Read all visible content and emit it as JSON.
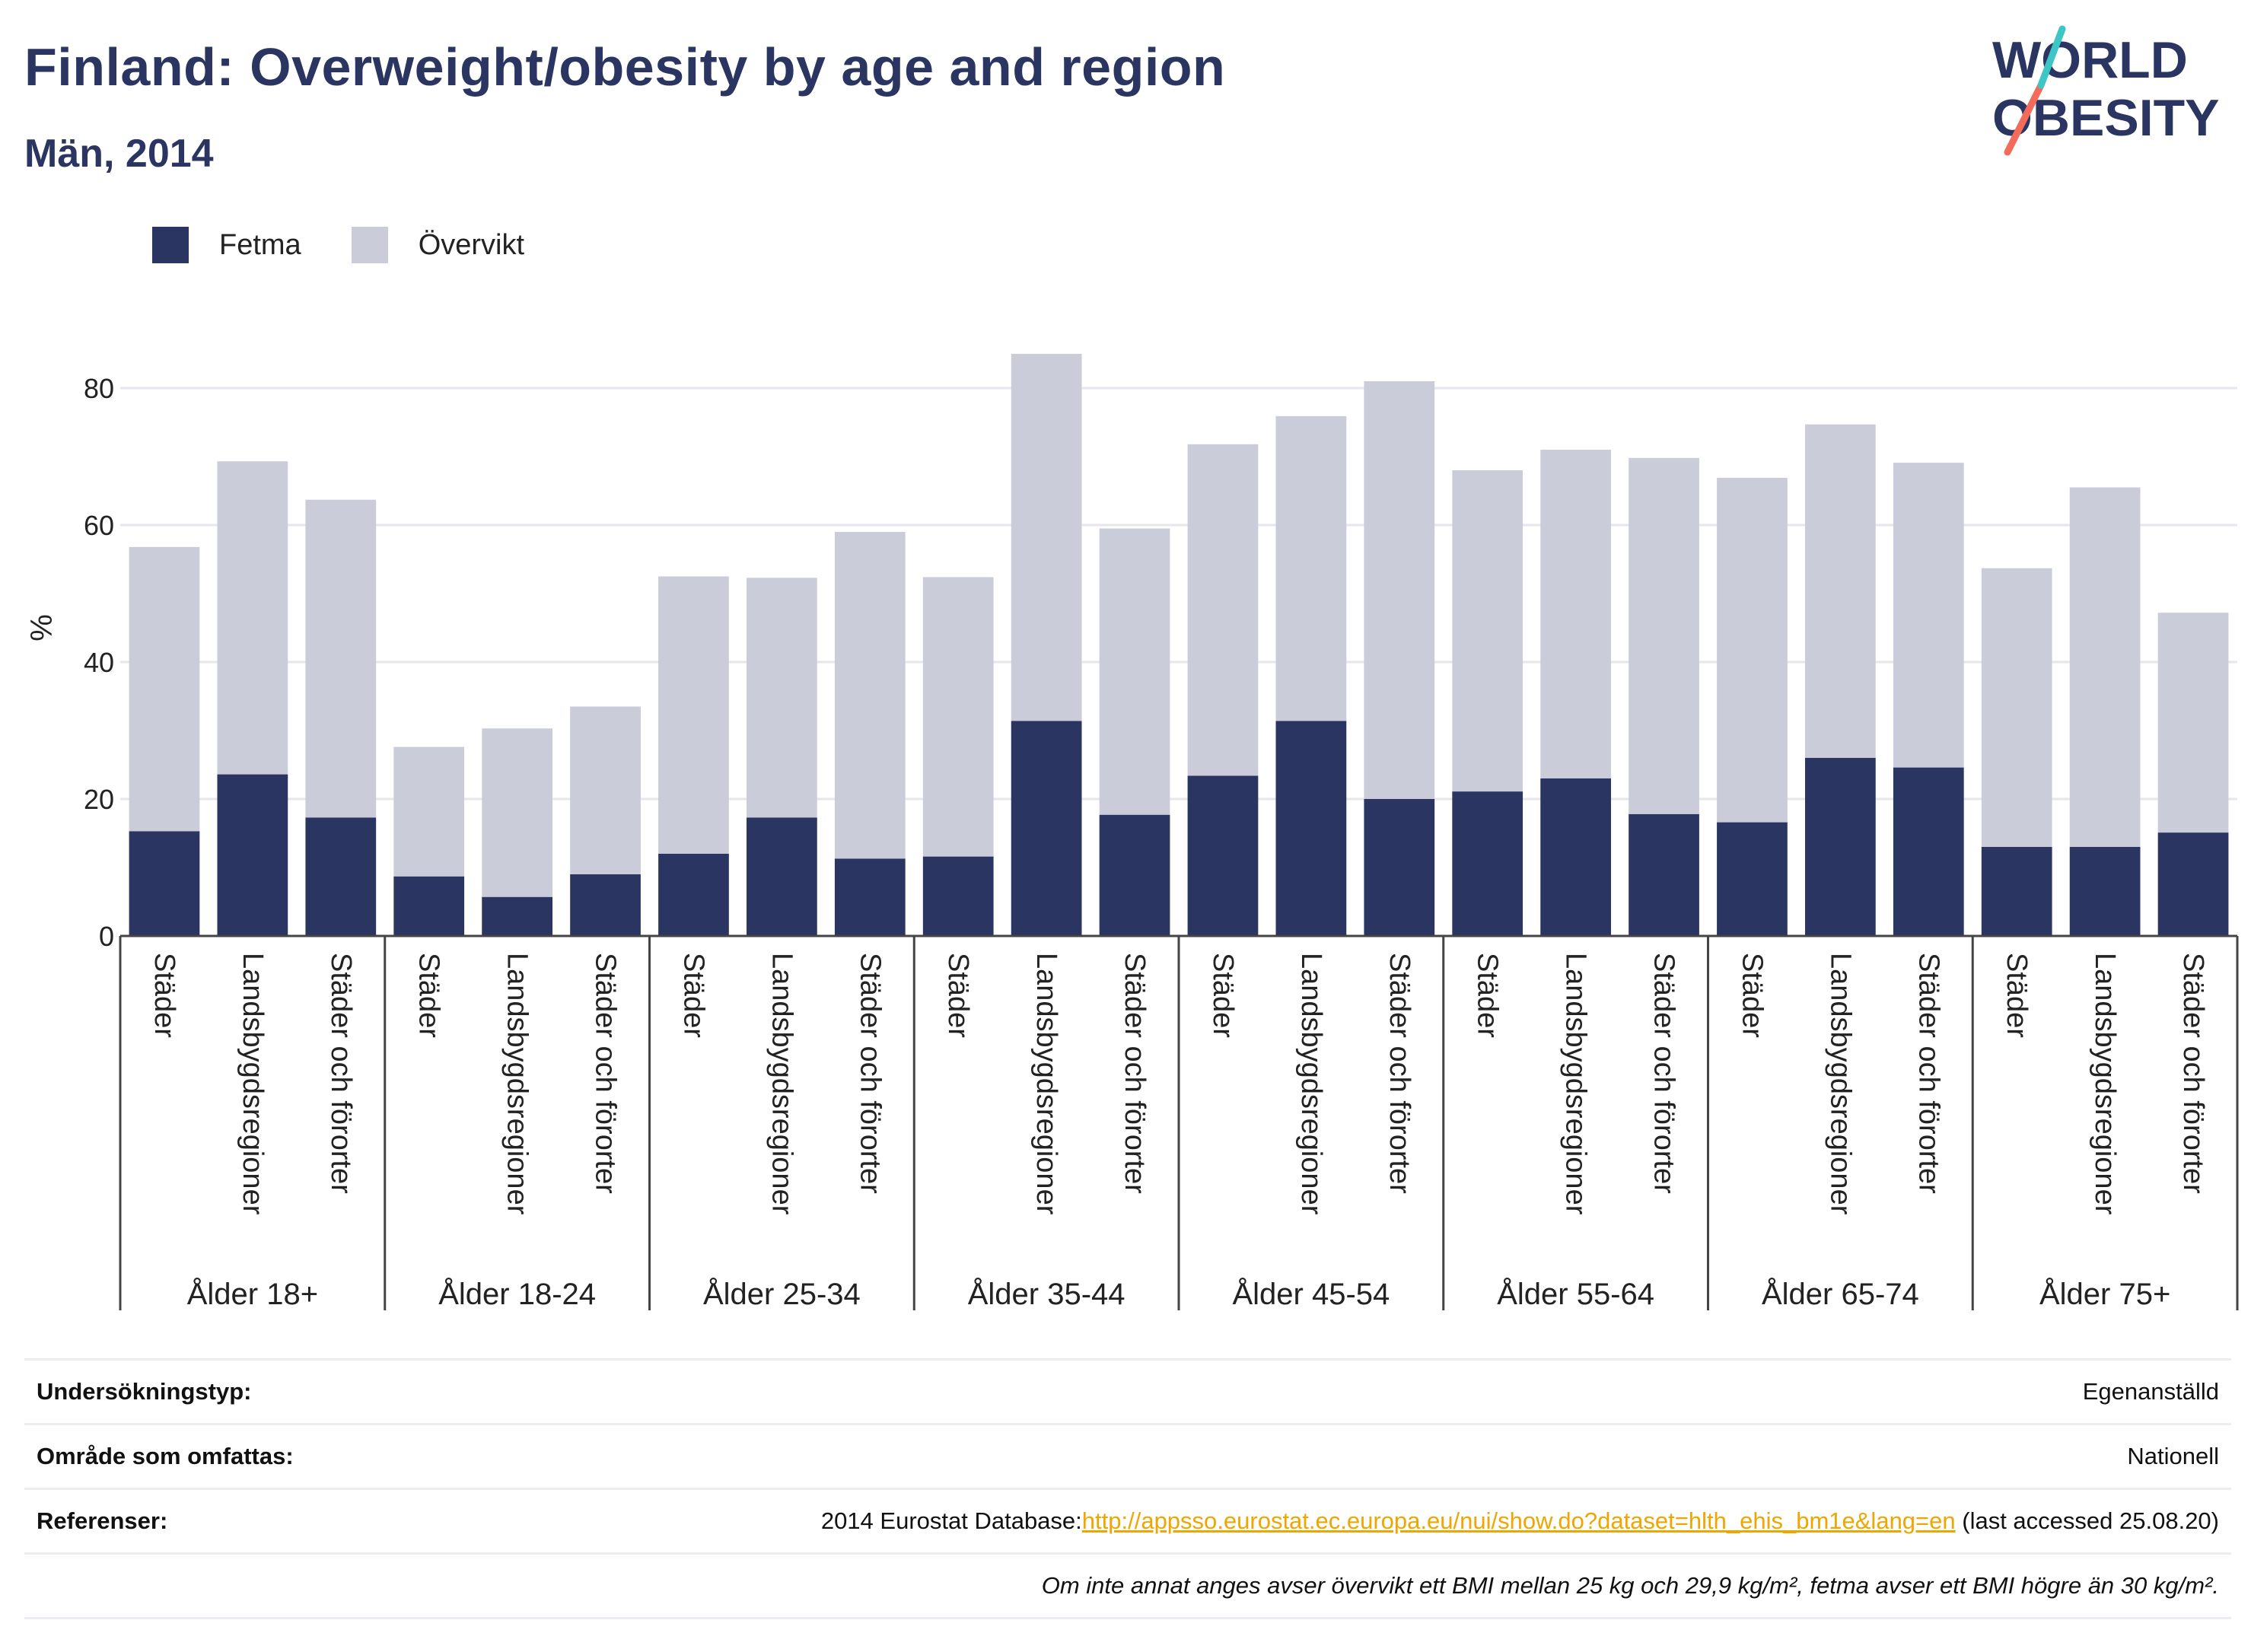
{
  "header": {
    "title": "Finland: Overweight/obesity by age and region",
    "subtitle": "Män, 2014"
  },
  "logo": {
    "line1": "WORLD",
    "line2": "OBESITY",
    "accent_colors": [
      "#f26b5b",
      "#3ec6c6"
    ],
    "text_color": "#2a3561"
  },
  "colors": {
    "fetma": "#2a3561",
    "overvikt": "#cbccd9",
    "grid": "#e6e6ec",
    "text": "#2a3561"
  },
  "chart_data": {
    "type": "bar",
    "stacked": true,
    "ylabel": "%",
    "ylim": [
      0,
      90
    ],
    "yticks": [
      0,
      20,
      40,
      60,
      80
    ],
    "grid": true,
    "legend_position": "top-left",
    "groups": [
      "Ålder 18+",
      "Ålder 18-24",
      "Ålder 25-34",
      "Ålder 35-44",
      "Ålder 45-54",
      "Ålder 55-64",
      "Ålder 65-74",
      "Ålder 75+"
    ],
    "subcategories": [
      "Städer",
      "Landsbygdsregioner",
      "Städer och förorter"
    ],
    "series": [
      {
        "name": "Fetma",
        "values": [
          15.3,
          23.6,
          17.3,
          8.7,
          5.7,
          9.0,
          12.0,
          17.3,
          11.3,
          11.6,
          31.4,
          17.7,
          23.4,
          31.4,
          20.0,
          21.1,
          23.0,
          17.8,
          16.6,
          26.0,
          24.6,
          13.0,
          13.0,
          15.1
        ]
      },
      {
        "name": "Övervikt",
        "values": [
          41.5,
          45.7,
          46.4,
          18.9,
          24.6,
          24.5,
          40.5,
          35.0,
          47.7,
          40.8,
          53.6,
          41.8,
          48.4,
          44.5,
          61.0,
          46.9,
          48.0,
          52.0,
          50.3,
          48.7,
          44.5,
          40.7,
          52.5,
          32.1
        ]
      }
    ]
  },
  "info_table": {
    "rows": [
      {
        "label": "Undersökningstyp:",
        "value": "Egenanställd"
      },
      {
        "label": "Område som omfattas:",
        "value": "Nationell"
      }
    ],
    "references": {
      "label": "Referenser:",
      "prefix": "2014 Eurostat Database:",
      "link": "http://appsso.eurostat.ec.europa.eu/nui/show.do?dataset=hlth_ehis_bm1e&lang=en",
      "suffix": " (last accessed 25.08.20)"
    },
    "note": "Om inte annat anges avser övervikt ett BMI mellan 25 kg och 29,9 kg/m², fetma avser ett BMI högre än 30 kg/m²."
  }
}
